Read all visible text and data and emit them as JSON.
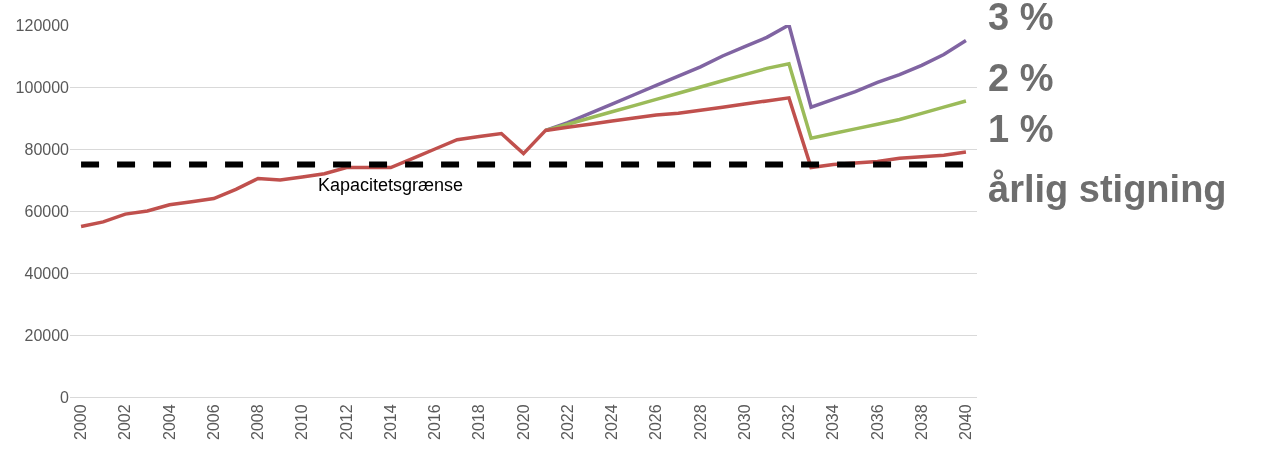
{
  "chart_data": {
    "type": "line",
    "categories": [
      "2000",
      null,
      "2002",
      null,
      "2004",
      null,
      "2006",
      null,
      "2008",
      null,
      "2010",
      null,
      "2012",
      null,
      "2014",
      null,
      "2016",
      null,
      "2018",
      null,
      "2020",
      null,
      "2022",
      null,
      "2024",
      null,
      "2026",
      null,
      "2028",
      null,
      "2030",
      null,
      "2032",
      null,
      "2034",
      null,
      "2036",
      null,
      "2038",
      null,
      "2040"
    ],
    "series": [
      {
        "name": "3 %",
        "color": "#8064a2",
        "values": [
          null,
          null,
          null,
          null,
          null,
          null,
          null,
          null,
          null,
          null,
          null,
          null,
          null,
          null,
          null,
          null,
          null,
          null,
          null,
          null,
          null,
          86000,
          88500,
          91500,
          94500,
          97500,
          100500,
          103500,
          106500,
          110000,
          113000,
          116000,
          120000,
          93500,
          96000,
          98500,
          101500,
          104000,
          107000,
          110500,
          115000
        ]
      },
      {
        "name": "2 %",
        "color": "#9bbb59",
        "values": [
          null,
          null,
          null,
          null,
          null,
          null,
          null,
          null,
          null,
          null,
          null,
          null,
          null,
          null,
          null,
          null,
          null,
          null,
          null,
          null,
          null,
          86000,
          88000,
          90000,
          92000,
          94000,
          96000,
          98000,
          100000,
          102000,
          104000,
          106000,
          107500,
          83500,
          85000,
          86500,
          88000,
          89500,
          91500,
          93500,
          95500
        ]
      },
      {
        "name": "1 %",
        "color": "#c0504d",
        "values": [
          55000,
          56500,
          59000,
          60000,
          62000,
          63000,
          64000,
          67000,
          70500,
          70000,
          71000,
          72000,
          74000,
          74000,
          74000,
          77000,
          80000,
          83000,
          84000,
          85000,
          78500,
          86000,
          87000,
          88000,
          89000,
          90000,
          91000,
          91500,
          92500,
          93500,
          94500,
          95500,
          96500,
          74000,
          75000,
          75500,
          76000,
          77000,
          77500,
          78000,
          79000
        ]
      }
    ],
    "ylim": [
      0,
      120000
    ],
    "yticks": [
      0,
      20000,
      40000,
      60000,
      80000,
      100000,
      120000
    ],
    "grid": "y",
    "legend": false,
    "ref_lines": [
      {
        "axis": "y",
        "value": 75000,
        "label": "Kapacitetsgrænse",
        "color": "#000000",
        "line_style": "dashed"
      }
    ],
    "annotations": [
      "årlig stigning"
    ]
  }
}
